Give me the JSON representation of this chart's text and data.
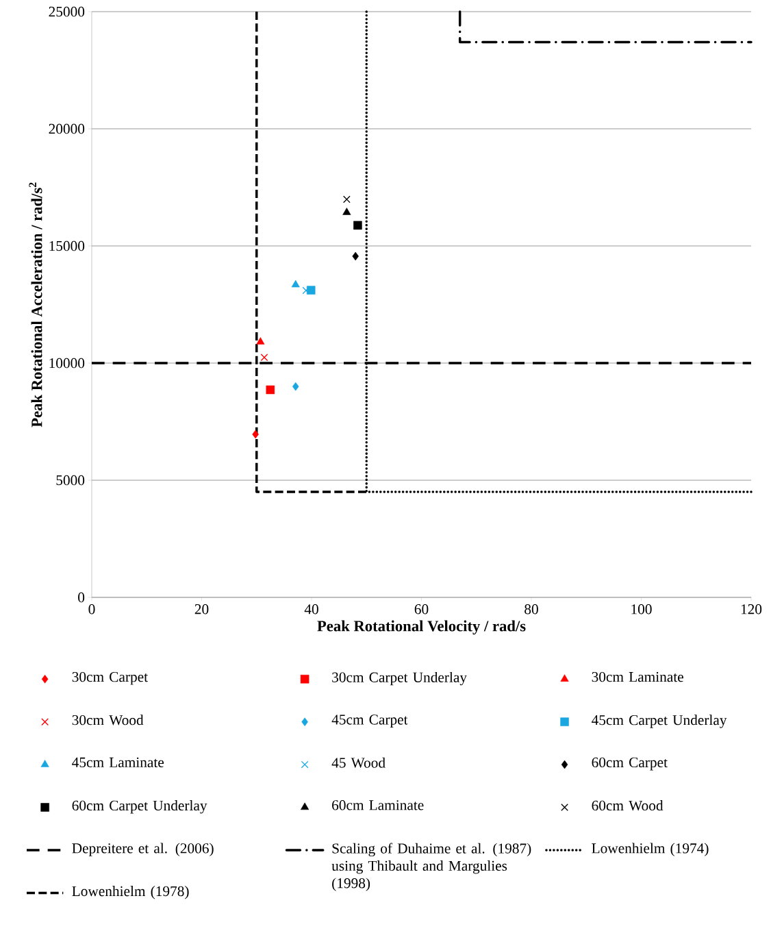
{
  "chart_data": {
    "type": "scatter",
    "xlabel": "Peak Rotational Velocity / rad/s",
    "ylabel": "Peak Rotational Acceleration / rad/s$^{2}$",
    "xlim": [
      0,
      120
    ],
    "ylim": [
      0,
      25000
    ],
    "xticks": [
      0,
      20,
      40,
      60,
      80,
      100,
      120
    ],
    "yticks": [
      0,
      5000,
      10000,
      15000,
      20000,
      25000
    ],
    "grid": "y",
    "legend": "bottom",
    "series": [
      {
        "name": "30cm Carpet",
        "type": "scatter",
        "marker": "diamond",
        "color": "#ff0000",
        "x": [
          29.8
        ],
        "values": [
          6960
        ]
      },
      {
        "name": "30cm Carpet Underlay",
        "type": "scatter",
        "marker": "square",
        "color": "#ff0000",
        "x": [
          32.5
        ],
        "values": [
          8860
        ]
      },
      {
        "name": "30cm Laminate",
        "type": "scatter",
        "marker": "triangle",
        "color": "#ff0000",
        "x": [
          30.7
        ],
        "values": [
          10900
        ]
      },
      {
        "name": "30cm Wood",
        "type": "scatter",
        "marker": "cross",
        "color": "#ff0000",
        "x": [
          31.4
        ],
        "values": [
          10240
        ]
      },
      {
        "name": "45cm Carpet",
        "type": "scatter",
        "marker": "diamond",
        "color": "#1aa7e0",
        "x": [
          37.1
        ],
        "values": [
          9000
        ]
      },
      {
        "name": "45cm Carpet Underlay",
        "type": "scatter",
        "marker": "square",
        "color": "#1aa7e0",
        "x": [
          39.9
        ],
        "values": [
          13110
        ]
      },
      {
        "name": "45cm Laminate",
        "type": "scatter",
        "marker": "triangle",
        "color": "#1aa7e0",
        "x": [
          37.1
        ],
        "values": [
          13340
        ]
      },
      {
        "name": "45 Wood",
        "type": "scatter",
        "marker": "cross",
        "color": "#1aa7e0",
        "x": [
          39.0
        ],
        "values": [
          13100
        ]
      },
      {
        "name": "60cm Carpet",
        "type": "scatter",
        "marker": "diamond",
        "color": "#000000",
        "x": [
          48.0
        ],
        "values": [
          14560
        ]
      },
      {
        "name": "60cm Carpet Underlay",
        "type": "scatter",
        "marker": "square",
        "color": "#000000",
        "x": [
          48.4
        ],
        "values": [
          15880
        ]
      },
      {
        "name": "60cm Laminate",
        "type": "scatter",
        "marker": "triangle",
        "color": "#000000",
        "x": [
          46.4
        ],
        "values": [
          16430
        ]
      },
      {
        "name": "60cm Wood",
        "type": "scatter",
        "marker": "cross",
        "color": "#000000",
        "x": [
          46.4
        ],
        "values": [
          16990
        ]
      },
      {
        "name": "Depreitere et al. (2006)",
        "type": "line",
        "line_style": "longdashed",
        "color": "#000000",
        "x": [
          0,
          120
        ],
        "values": [
          10000,
          10000
        ]
      },
      {
        "name": "Scaling of Duhaime et al. (1987) using Thibault and Margulies (1998)",
        "type": "line",
        "line_style": "dashdot",
        "color": "#000000",
        "x": [
          67,
          67,
          120
        ],
        "values": [
          25000,
          23700,
          23700
        ]
      },
      {
        "name": "Lowenhielm (1974)",
        "type": "line",
        "line_style": "dotted",
        "color": "#000000",
        "x": [
          50,
          50,
          120
        ],
        "values": [
          25000,
          4500,
          4500
        ]
      },
      {
        "name": "Lowenhielm (1978)",
        "type": "line",
        "line_style": "dashed",
        "color": "#000000",
        "x": [
          30,
          30,
          50
        ],
        "values": [
          25000,
          4500,
          4500
        ]
      }
    ]
  }
}
